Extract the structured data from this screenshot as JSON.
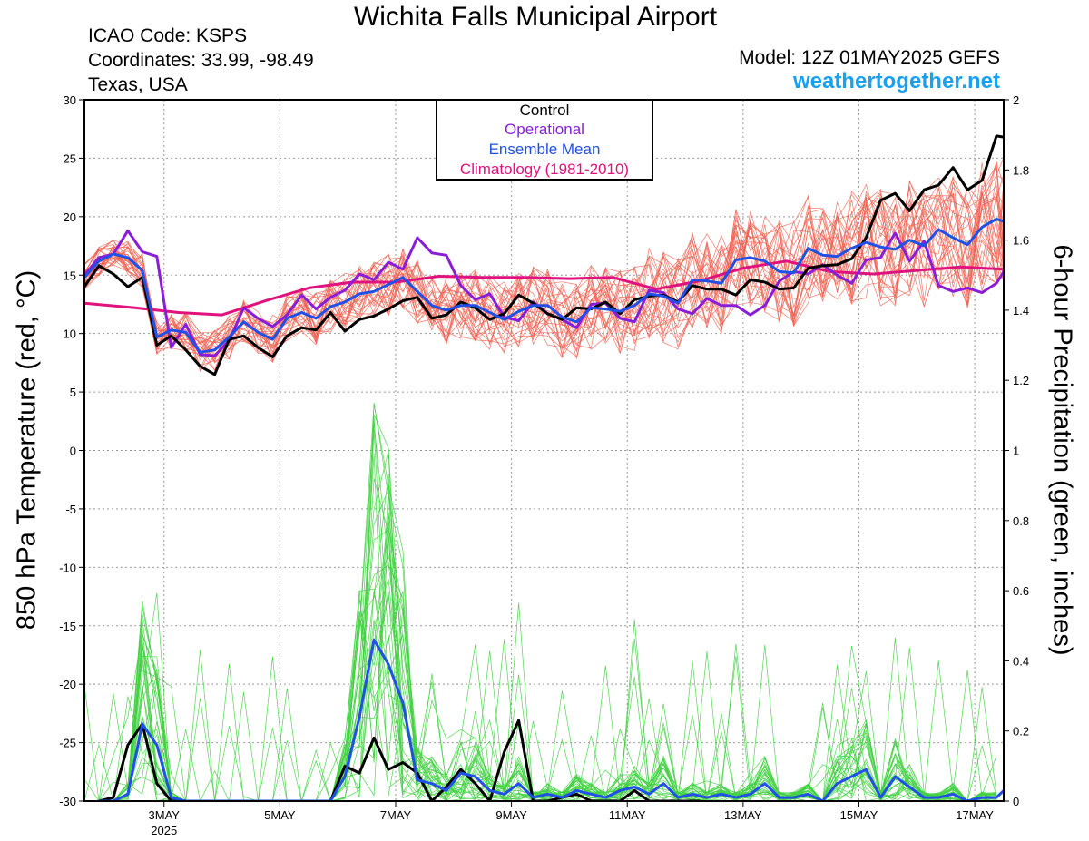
{
  "header": {
    "title": "Wichita Falls Municipal Airport",
    "icao": "ICAO Code: KSPS",
    "coords": "Coordinates: 33.99, -98.49",
    "region": "Texas, USA",
    "model": "Model: 12Z 01MAY2025 GEFS",
    "site": "weathertogether.net"
  },
  "chart_data": {
    "type": "line",
    "title": "Wichita Falls Municipal Airport",
    "ylabel": "850 hPa Temperature (red, °C)",
    "y2label": "6-hour Precipitation (green, inches)",
    "ylim": [
      -30,
      30
    ],
    "y2lim": [
      0,
      2
    ],
    "xlim_days": [
      1.625,
      17.5
    ],
    "x_ticks": [
      {
        "day": 3,
        "label": "3MAY",
        "sub": "2025"
      },
      {
        "day": 5,
        "label": "5MAY",
        "sub": ""
      },
      {
        "day": 7,
        "label": "7MAY",
        "sub": ""
      },
      {
        "day": 9,
        "label": "9MAY",
        "sub": ""
      },
      {
        "day": 11,
        "label": "11MAY",
        "sub": ""
      },
      {
        "day": 13,
        "label": "13MAY",
        "sub": ""
      },
      {
        "day": 15,
        "label": "15MAY",
        "sub": ""
      },
      {
        "day": 17,
        "label": "17MAY",
        "sub": ""
      }
    ],
    "y_ticks": [
      30,
      25,
      20,
      15,
      10,
      5,
      0,
      -5,
      -10,
      -15,
      -20,
      -25,
      -30
    ],
    "y2_ticks": [
      "2",
      "1.8",
      "1.6",
      "1.4",
      "1.2",
      "1",
      "0.8",
      "0.6",
      "0.4",
      "0.2",
      "0"
    ],
    "grid": true,
    "legend": {
      "position": "top-center",
      "entries": [
        {
          "label": "Control",
          "color": "#000000"
        },
        {
          "label": "Operational",
          "color": "#8a1ed8"
        },
        {
          "label": "Ensemble Mean",
          "color": "#2050e6"
        },
        {
          "label": "Climatology (1981-2010)",
          "color": "#e0137e"
        }
      ]
    },
    "colors": {
      "control": "#000000",
      "operational": "#8a1ed8",
      "mean": "#2050e6",
      "climatology": "#e0137e",
      "members_temp": "#f06050",
      "members_precip": "#40d040"
    },
    "series": [
      {
        "name": "Control",
        "kind": "temperature",
        "x": [
          1.625,
          1.875,
          2.125,
          2.375,
          2.625,
          2.875,
          3.125,
          3.375,
          3.625,
          3.875,
          4.125,
          4.375,
          4.625,
          4.875,
          5.125,
          5.375,
          5.625,
          5.875,
          6.125,
          6.375,
          6.625,
          6.875,
          7.125,
          7.375,
          7.625,
          7.875,
          8.125,
          8.375,
          8.625,
          8.875,
          9.125,
          9.375,
          9.625,
          9.875,
          10.125,
          10.375,
          10.625,
          10.875,
          11.125,
          11.375,
          11.625,
          11.875,
          12.125,
          12.375,
          12.625,
          12.875,
          13.125,
          13.375,
          13.625,
          13.875,
          14.125,
          14.375,
          14.625,
          14.875,
          15.125,
          15.375,
          15.625,
          15.875,
          16.125,
          16.375,
          16.625,
          16.875,
          17.125,
          17.375,
          17.5
        ],
        "values": [
          14,
          15.8,
          15.1,
          14,
          14.8,
          9,
          9.8,
          8.6,
          7.2,
          6.5,
          9.5,
          9.8,
          8.8,
          8,
          9.8,
          10.5,
          10.3,
          11.8,
          10.2,
          11.2,
          11.5,
          12.1,
          12.8,
          13.1,
          11.3,
          11.6,
          12.7,
          12.2,
          11.2,
          11.7,
          13.3,
          12.6,
          11.7,
          11.2,
          12.2,
          12.1,
          12.7,
          11.7,
          12.9,
          13.2,
          13.3,
          12.7,
          14.1,
          13.8,
          13.8,
          13.3,
          14.6,
          14.4,
          13.8,
          13.9,
          15.6,
          15.8,
          15.9,
          16.4,
          18.2,
          21.4,
          22,
          20.5,
          22.3,
          22.7,
          24.2,
          22.3,
          23.1,
          26.9,
          26.8
        ]
      },
      {
        "name": "Operational",
        "kind": "temperature",
        "x": [
          1.625,
          1.875,
          2.125,
          2.375,
          2.625,
          2.875,
          3.125,
          3.375,
          3.625,
          3.875,
          4.125,
          4.375,
          4.625,
          4.875,
          5.125,
          5.375,
          5.625,
          5.875,
          6.125,
          6.375,
          6.625,
          6.875,
          7.125,
          7.375,
          7.625,
          7.875,
          8.125,
          8.375,
          8.625,
          8.875,
          9.125,
          9.375,
          9.625,
          9.875,
          10.125,
          10.375,
          10.625,
          10.875,
          11.125,
          11.375,
          11.625,
          11.875,
          12.125,
          12.375,
          12.625,
          12.875,
          13.125,
          13.375,
          13.625,
          13.875,
          14.125,
          14.375,
          14.625,
          14.875,
          15.125,
          15.375,
          15.625,
          15.875,
          16.125,
          16.375,
          16.625,
          16.875,
          17.125,
          17.375,
          17.5
        ],
        "values": [
          15,
          16.5,
          16.8,
          18.8,
          17,
          16.6,
          8.8,
          10.8,
          8.2,
          8.1,
          9.4,
          12.2,
          11.3,
          10.6,
          11.6,
          13.3,
          12.1,
          13.1,
          13.7,
          15.1,
          14.6,
          16.1,
          15.5,
          18.2,
          16.9,
          16.7,
          14.1,
          12.9,
          13.4,
          11.4,
          11.1,
          12.7,
          11.7,
          11.2,
          10.5,
          12.5,
          12.6,
          11.3,
          11,
          13.7,
          13.5,
          12.1,
          11.7,
          13,
          12.4,
          12.4,
          11.6,
          12.4,
          14.5,
          15.3,
          15.1,
          15.9,
          15,
          14.3,
          16.3,
          16.5,
          18.6,
          16.2,
          17.9,
          14.1,
          13.6,
          13.9,
          13.5,
          14.3,
          15.3
        ]
      },
      {
        "name": "Ensemble Mean",
        "kind": "temperature",
        "x": [
          1.625,
          1.875,
          2.125,
          2.375,
          2.625,
          2.875,
          3.125,
          3.375,
          3.625,
          3.875,
          4.125,
          4.375,
          4.625,
          4.875,
          5.125,
          5.375,
          5.625,
          5.875,
          6.125,
          6.375,
          6.625,
          6.875,
          7.125,
          7.375,
          7.625,
          7.875,
          8.125,
          8.375,
          8.625,
          8.875,
          9.125,
          9.375,
          9.625,
          9.875,
          10.125,
          10.375,
          10.625,
          10.875,
          11.125,
          11.375,
          11.625,
          11.875,
          12.125,
          12.375,
          12.625,
          12.875,
          13.125,
          13.375,
          13.625,
          13.875,
          14.125,
          14.375,
          14.625,
          14.875,
          15.125,
          15.375,
          15.625,
          15.875,
          16.125,
          16.375,
          16.625,
          16.875,
          17.125,
          17.375,
          17.5
        ],
        "values": [
          14.8,
          16.2,
          16.8,
          16.5,
          15.4,
          9.7,
          10.3,
          10.1,
          8.4,
          8.6,
          9.7,
          11,
          10.1,
          9.5,
          11.3,
          11.8,
          11.3,
          12.3,
          12.7,
          13.4,
          13.6,
          14.2,
          14.8,
          13.6,
          12.4,
          12,
          12.4,
          12.4,
          11.8,
          11.2,
          11.9,
          12.4,
          12.4,
          11.4,
          11,
          12.2,
          12.1,
          11.9,
          12.4,
          13.4,
          13.2,
          12.6,
          14.6,
          14.5,
          14.3,
          16.3,
          16.5,
          16.2,
          15.3,
          15.2,
          17.3,
          16.7,
          16.6,
          17.3,
          17.8,
          17.4,
          17.2,
          18,
          17.5,
          18.9,
          18.2,
          17.6,
          19.1,
          19.8,
          19.6
        ]
      },
      {
        "name": "Climatology (1981-2010)",
        "kind": "temperature",
        "x": [
          1.625,
          2.5,
          3.25,
          4.0,
          4.75,
          5.5,
          6.25,
          7.0,
          7.75,
          8.5,
          9.25,
          10.0,
          10.75,
          11.5,
          12.25,
          13.0,
          13.75,
          14.5,
          15.25,
          16.0,
          16.75,
          17.5
        ],
        "values": [
          12.6,
          12.2,
          11.8,
          11.6,
          12.8,
          13.9,
          14.4,
          14.4,
          14.9,
          14.8,
          14.8,
          14.7,
          14.8,
          13.8,
          14.5,
          15.6,
          16.2,
          15.3,
          15.1,
          15.4,
          15.7,
          15.5
        ]
      },
      {
        "name": "Control",
        "kind": "precipitation",
        "x": [
          1.875,
          2.125,
          2.375,
          2.625,
          2.875,
          3.125,
          3.25,
          5.875,
          6.125,
          6.375,
          6.625,
          6.875,
          7.125,
          7.375,
          7.625,
          7.875,
          8.125,
          8.375,
          8.625,
          8.875,
          9.125,
          9.375,
          9.625,
          9.875,
          10.125,
          10.375,
          10.625,
          10.875,
          11.125,
          11.375,
          11.625,
          11.875,
          12.125,
          12.25
        ],
        "values": [
          0,
          0.01,
          0.16,
          0.22,
          0.05,
          0,
          0,
          0,
          0.1,
          0.08,
          0.18,
          0.09,
          0.11,
          0.08,
          0,
          0.04,
          0.09,
          0.05,
          0,
          0.14,
          0.23,
          0,
          0,
          0.01,
          0.02,
          0,
          0,
          0,
          0.03,
          0,
          0,
          0,
          0,
          0
        ]
      },
      {
        "name": "Ensemble Mean",
        "kind": "precipitation",
        "x": [
          1.875,
          2.125,
          2.375,
          2.625,
          2.875,
          3.125,
          3.375,
          5.625,
          5.875,
          6.125,
          6.375,
          6.625,
          6.875,
          7.125,
          7.375,
          7.625,
          7.875,
          8.125,
          8.375,
          8.625,
          8.875,
          9.125,
          9.375,
          9.625,
          9.875,
          10.125,
          10.375,
          10.625,
          10.875,
          11.125,
          11.375,
          11.625,
          11.875,
          12.125,
          12.375,
          12.625,
          12.875,
          13.125,
          13.375,
          13.625,
          13.875,
          14.125,
          14.375,
          14.625,
          14.875,
          15.125,
          15.375,
          15.625,
          15.875,
          16.125,
          16.375,
          16.625,
          16.875,
          17.125,
          17.375,
          17.5
        ],
        "values": [
          0,
          0,
          0.02,
          0.22,
          0.16,
          0.01,
          0,
          0,
          0,
          0.07,
          0.24,
          0.46,
          0.39,
          0.28,
          0.06,
          0.05,
          0.03,
          0.08,
          0.07,
          0.03,
          0.02,
          0.05,
          0.01,
          0.02,
          0.01,
          0.03,
          0.02,
          0.01,
          0.03,
          0.04,
          0.02,
          0.05,
          0.01,
          0.02,
          0.01,
          0.02,
          0.01,
          0.02,
          0.05,
          0.01,
          0.01,
          0.02,
          0,
          0.05,
          0.07,
          0.09,
          0.01,
          0.07,
          0.04,
          0.01,
          0.01,
          0.02,
          0,
          0.01,
          0.01,
          0.03
        ]
      }
    ]
  }
}
